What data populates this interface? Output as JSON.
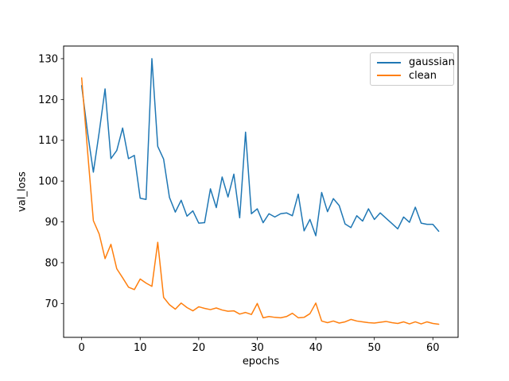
{
  "chart_data": {
    "type": "line",
    "title": "",
    "xlabel": "epochs",
    "ylabel": "val_loss",
    "x_start": 0,
    "xlim": [
      -3.08,
      64.31
    ],
    "ylim": [
      61.7,
      133.1
    ],
    "xticks": [
      0,
      10,
      20,
      30,
      40,
      50,
      60
    ],
    "yticks": [
      70,
      80,
      90,
      100,
      110,
      120,
      130
    ],
    "grid": false,
    "legend_position": "upper right",
    "axis_color": "#000000",
    "background_color": "#ffffff",
    "series": [
      {
        "name": "gaussian",
        "color": "#1f77b4",
        "values": [
          123.4,
          112.0,
          102.2,
          112.0,
          122.6,
          105.5,
          107.5,
          113.0,
          105.5,
          106.3,
          95.8,
          95.5,
          130.0,
          108.5,
          105.4,
          96.0,
          92.4,
          95.3,
          91.4,
          92.7,
          89.7,
          89.8,
          98.1,
          93.5,
          101.0,
          96.1,
          101.7,
          91.0,
          112.0,
          92.0,
          93.2,
          89.8,
          92.0,
          91.2,
          92.0,
          92.2,
          91.5,
          96.8,
          87.8,
          90.6,
          86.6,
          97.2,
          92.5,
          95.7,
          94.0,
          89.5,
          88.6,
          91.5,
          90.2,
          93.2,
          90.6,
          92.2,
          90.9,
          89.6,
          88.3,
          91.2,
          89.9,
          93.6,
          89.7,
          89.4,
          89.4,
          87.7
        ]
      },
      {
        "name": "clean",
        "color": "#ff7f0e",
        "values": [
          125.3,
          107.5,
          90.3,
          87.0,
          81.0,
          84.5,
          78.5,
          76.3,
          74.0,
          73.4,
          76.0,
          75.0,
          74.2,
          85.0,
          71.5,
          69.7,
          68.6,
          70.1,
          69.0,
          68.2,
          69.2,
          68.8,
          68.5,
          68.9,
          68.4,
          68.1,
          68.2,
          67.4,
          67.8,
          67.3,
          70.0,
          66.5,
          66.8,
          66.6,
          66.5,
          66.8,
          67.6,
          66.5,
          66.6,
          67.5,
          70.1,
          65.7,
          65.3,
          65.7,
          65.2,
          65.5,
          66.1,
          65.7,
          65.5,
          65.3,
          65.2,
          65.4,
          65.6,
          65.3,
          65.1,
          65.5,
          65.0,
          65.5,
          65.0,
          65.5,
          65.1,
          64.9
        ]
      }
    ]
  }
}
